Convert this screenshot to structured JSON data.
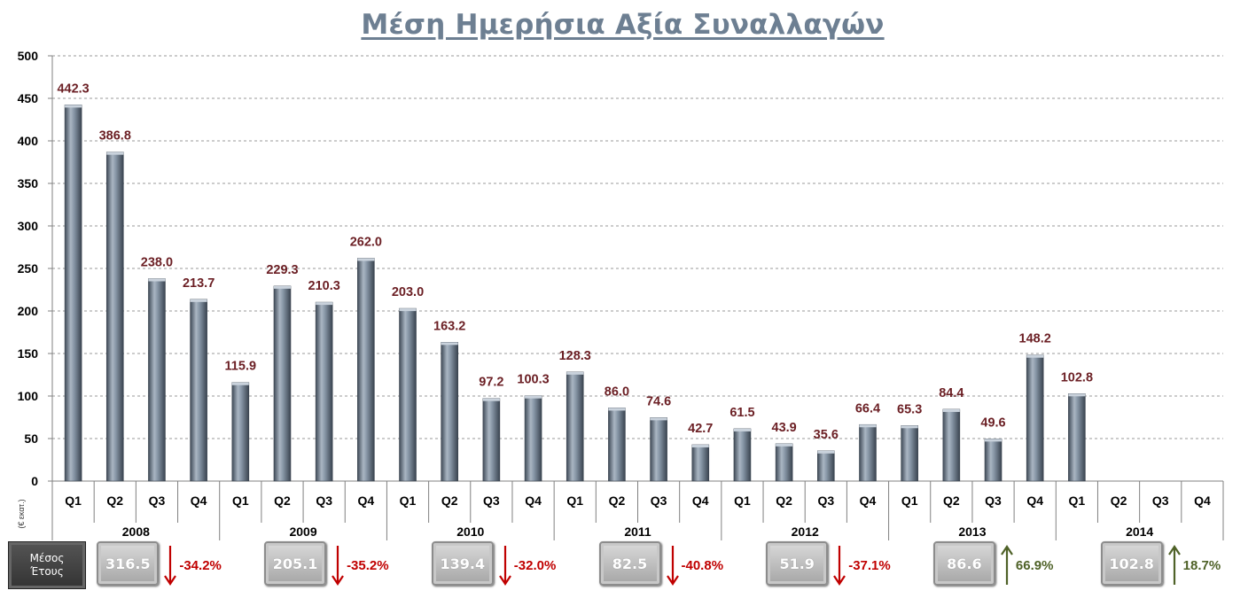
{
  "chart_data": {
    "type": "bar",
    "title": "Μέση Ημερήσια Αξία Συναλλαγών",
    "ylabel": "(€ εκατ.)",
    "ylim": [
      0,
      500
    ],
    "y_ticks": [
      "0",
      "50",
      "100",
      "150",
      "200",
      "250",
      "300",
      "350",
      "400",
      "450",
      "500"
    ],
    "grid": true,
    "colors": {
      "bar": "#7a8898",
      "data_label": "#6b1f24",
      "down": "#c00000",
      "up": "#4f6228"
    },
    "categories": [
      "Q1",
      "Q2",
      "Q3",
      "Q4",
      "Q1",
      "Q2",
      "Q3",
      "Q4",
      "Q1",
      "Q2",
      "Q3",
      "Q4",
      "Q1",
      "Q2",
      "Q3",
      "Q4",
      "Q1",
      "Q2",
      "Q3",
      "Q4",
      "Q1",
      "Q2",
      "Q3",
      "Q4",
      "Q1",
      "Q2",
      "Q3",
      "Q4"
    ],
    "years": [
      "2008",
      "2009",
      "2010",
      "2011",
      "2012",
      "2013",
      "2014"
    ],
    "values": [
      442.3,
      386.8,
      238.0,
      213.7,
      115.9,
      229.3,
      210.3,
      262.0,
      203.0,
      163.2,
      97.2,
      100.3,
      128.3,
      86.0,
      74.6,
      42.7,
      61.5,
      43.9,
      35.6,
      66.4,
      65.3,
      84.4,
      49.6,
      148.2,
      102.8,
      null,
      null,
      null
    ],
    "value_labels": [
      "442.3",
      "386.8",
      "238.0",
      "213.7",
      "115.9",
      "229.3",
      "210.3",
      "262.0",
      "203.0",
      "163.2",
      "97.2",
      "100.3",
      "128.3",
      "86.0",
      "74.6",
      "42.7",
      "61.5",
      "43.9",
      "35.6",
      "66.4",
      "65.3",
      "84.4",
      "49.6",
      "148.2",
      "102.8",
      "",
      "",
      ""
    ]
  },
  "yearly_average": {
    "label": "Μέσος\nΈτους",
    "values": [
      "316.5",
      "205.1",
      "139.4",
      "82.5",
      "51.9",
      "86.6",
      "102.8"
    ],
    "changes": [
      {
        "text": "-34.2%",
        "direction": "down"
      },
      {
        "text": "-35.2%",
        "direction": "down"
      },
      {
        "text": "-32.0%",
        "direction": "down"
      },
      {
        "text": "-40.8%",
        "direction": "down"
      },
      {
        "text": "-37.1%",
        "direction": "down"
      },
      {
        "text": "66.9%",
        "direction": "up"
      },
      {
        "text": "18.7%",
        "direction": "up"
      }
    ]
  }
}
